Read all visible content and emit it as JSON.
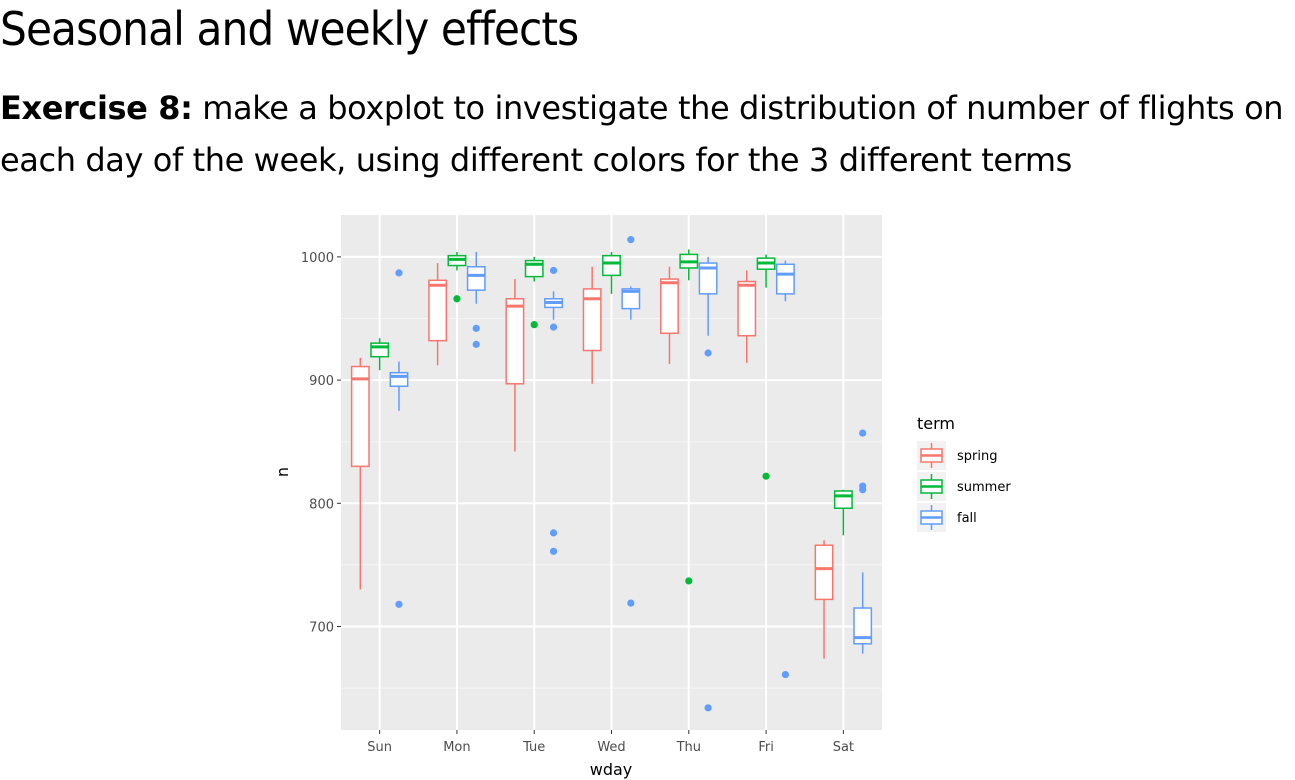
{
  "slide": {
    "title": "Seasonal and weekly effects",
    "exercise_label": "Exercise 8:",
    "exercise_text": " make a boxplot to investigate the distribution of number of flights on each day of the week, using different colors for the 3 different terms"
  },
  "chart_data": {
    "type": "boxplot",
    "xlabel": "wday",
    "ylabel": "n",
    "categories": [
      "Sun",
      "Mon",
      "Tue",
      "Wed",
      "Thu",
      "Fri",
      "Sat"
    ],
    "ylim": [
      616,
      1034
    ],
    "yticks": [
      700,
      800,
      900,
      1000
    ],
    "grid": true,
    "legend": {
      "title": "term",
      "placement": "right"
    },
    "series": [
      {
        "name": "spring",
        "color": "#F8766D",
        "boxes": [
          {
            "lower": 730,
            "q1": 830,
            "median": 901,
            "q3": 911,
            "upper": 918,
            "outliers": []
          },
          {
            "lower": 912,
            "q1": 932,
            "median": 977,
            "q3": 981,
            "upper": 995,
            "outliers": []
          },
          {
            "lower": 842,
            "q1": 897,
            "median": 960,
            "q3": 966,
            "upper": 982,
            "outliers": []
          },
          {
            "lower": 897,
            "q1": 924,
            "median": 966,
            "q3": 974,
            "upper": 992,
            "outliers": []
          },
          {
            "lower": 913,
            "q1": 938,
            "median": 979,
            "q3": 982,
            "upper": 992,
            "outliers": []
          },
          {
            "lower": 914,
            "q1": 936,
            "median": 977,
            "q3": 980,
            "upper": 989,
            "outliers": []
          },
          {
            "lower": 674,
            "q1": 722,
            "median": 747,
            "q3": 766,
            "upper": 770,
            "outliers": []
          }
        ]
      },
      {
        "name": "summer",
        "color": "#00BA38",
        "boxes": [
          {
            "lower": 908,
            "q1": 919,
            "median": 927,
            "q3": 930,
            "upper": 934,
            "outliers": []
          },
          {
            "lower": 989,
            "q1": 993,
            "median": 998,
            "q3": 1001,
            "upper": 1004,
            "outliers": [
              966
            ]
          },
          {
            "lower": 980,
            "q1": 984,
            "median": 994,
            "q3": 997,
            "upper": 1000,
            "outliers": [
              945
            ]
          },
          {
            "lower": 970,
            "q1": 985,
            "median": 995,
            "q3": 1001,
            "upper": 1004,
            "outliers": []
          },
          {
            "lower": 981,
            "q1": 991,
            "median": 996,
            "q3": 1002,
            "upper": 1006,
            "outliers": [
              737
            ]
          },
          {
            "lower": 975,
            "q1": 990,
            "median": 995,
            "q3": 999,
            "upper": 1002,
            "outliers": [
              822
            ]
          },
          {
            "lower": 774,
            "q1": 796,
            "median": 806,
            "q3": 810,
            "upper": 811,
            "outliers": []
          }
        ]
      },
      {
        "name": "fall",
        "color": "#619CFF",
        "boxes": [
          {
            "lower": 875,
            "q1": 895,
            "median": 903,
            "q3": 906,
            "upper": 915,
            "outliers": [
              987,
              718
            ]
          },
          {
            "lower": 962,
            "q1": 973,
            "median": 985,
            "q3": 992,
            "upper": 1004,
            "outliers": [
              942,
              929
            ]
          },
          {
            "lower": 949,
            "q1": 959,
            "median": 963,
            "q3": 966,
            "upper": 972,
            "outliers": [
              989,
              943,
              776,
              761
            ]
          },
          {
            "lower": 949,
            "q1": 958,
            "median": 972,
            "q3": 974,
            "upper": 976,
            "outliers": [
              1014,
              719
            ]
          },
          {
            "lower": 936,
            "q1": 970,
            "median": 991,
            "q3": 995,
            "upper": 1000,
            "outliers": [
              922,
              634
            ]
          },
          {
            "lower": 964,
            "q1": 970,
            "median": 986,
            "q3": 994,
            "upper": 997,
            "outliers": [
              661
            ]
          },
          {
            "lower": 678,
            "q1": 686,
            "median": 691,
            "q3": 715,
            "upper": 744,
            "outliers": [
              857,
              814,
              811
            ]
          }
        ]
      }
    ]
  }
}
